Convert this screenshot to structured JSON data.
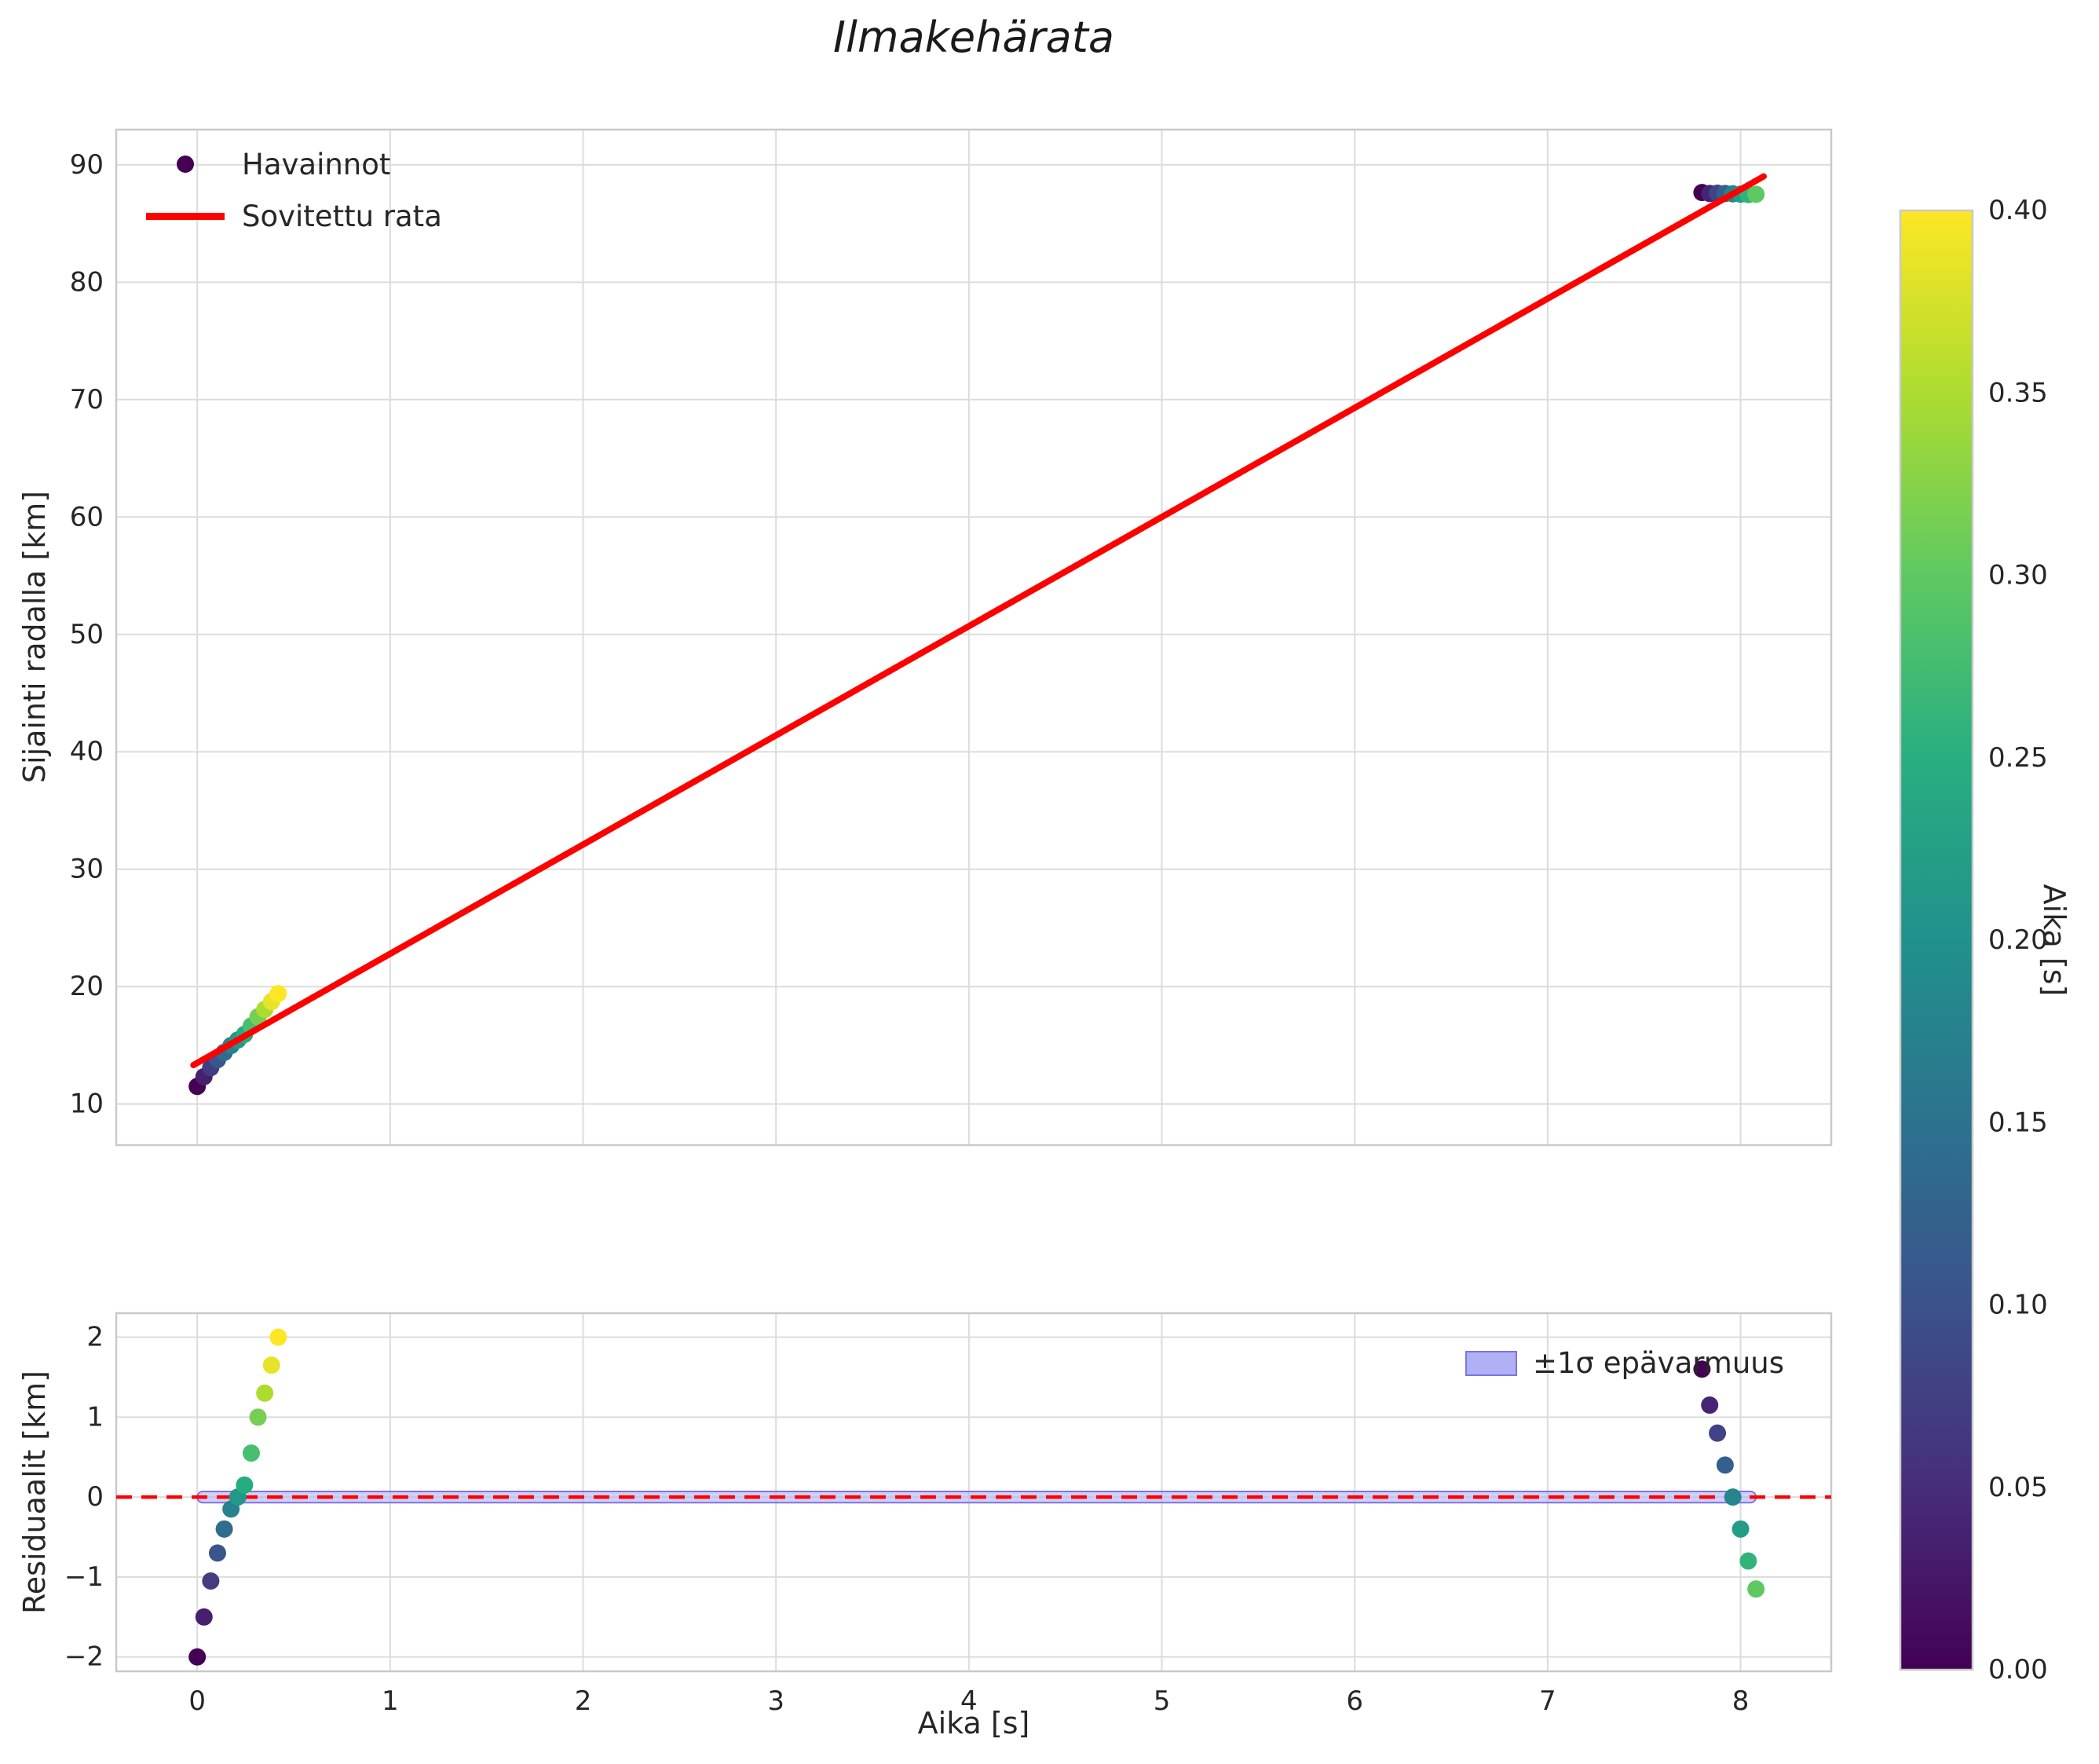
{
  "chart_data": {
    "type": "scatter",
    "title": "Ilmakehärata",
    "legend_position": "upper-left",
    "grid": true,
    "colors": {
      "fit_line": "#ff0000",
      "zero_line": "#ff0000",
      "grid": "#dcdcdc",
      "spine": "#c9c9c9",
      "text": "#262626",
      "band_fill": "#b0b0f5",
      "band_edge": "#7d74e0",
      "legend_dot": "#440154"
    },
    "legend": {
      "observations_label": "Havainnot",
      "fit_label": "Sovitettu rata",
      "band_label": "±1σ epävarmuus"
    },
    "colorbar": {
      "label": "Aika [s]",
      "min": 0.0,
      "max": 0.4,
      "ticks": [
        0.0,
        0.05,
        0.1,
        0.15,
        0.2,
        0.25,
        0.3,
        0.35,
        0.4
      ],
      "colormap": "viridis"
    },
    "fit_line": {
      "intercept": 13.5,
      "slope": 9.3,
      "x_start": -0.02,
      "x_end": 8.12
    },
    "top_plot": {
      "ylabel": "Sijainti radalla [km]",
      "ylim": [
        6.5,
        93
      ],
      "yticks": [
        10,
        20,
        30,
        40,
        50,
        60,
        70,
        80,
        90
      ],
      "xlim": [
        -0.42,
        8.47
      ],
      "xticks": [
        0,
        1,
        2,
        3,
        4,
        5,
        6,
        7,
        8
      ]
    },
    "bottom_plot": {
      "xlabel": "Aika [s]",
      "ylabel": "Residuaalit [km]",
      "ylim": [
        -2.18,
        2.3
      ],
      "yticks": [
        -2,
        -1,
        0,
        1,
        2
      ],
      "xticks": [
        0,
        1,
        2,
        3,
        4,
        5,
        6,
        7,
        8
      ],
      "band_halfwidth": 0.07,
      "band_x": [
        0.0,
        8.08
      ]
    },
    "points": [
      {
        "t": 0.0,
        "y": 11.5,
        "c": 0.0,
        "res": -2.0
      },
      {
        "t": 0.035,
        "y": 12.33,
        "c": 0.035,
        "res": -1.5
      },
      {
        "t": 0.07,
        "y": 13.1,
        "c": 0.07,
        "res": -1.05
      },
      {
        "t": 0.105,
        "y": 13.78,
        "c": 0.105,
        "res": -0.7
      },
      {
        "t": 0.14,
        "y": 14.4,
        "c": 0.14,
        "res": -0.4
      },
      {
        "t": 0.175,
        "y": 14.98,
        "c": 0.175,
        "res": -0.15
      },
      {
        "t": 0.21,
        "y": 15.45,
        "c": 0.21,
        "res": 0.0
      },
      {
        "t": 0.245,
        "y": 15.93,
        "c": 0.245,
        "res": 0.15
      },
      {
        "t": 0.28,
        "y": 16.65,
        "c": 0.28,
        "res": 0.55
      },
      {
        "t": 0.315,
        "y": 17.43,
        "c": 0.315,
        "res": 1.0
      },
      {
        "t": 0.35,
        "y": 18.06,
        "c": 0.35,
        "res": 1.3
      },
      {
        "t": 0.385,
        "y": 18.73,
        "c": 0.385,
        "res": 1.65
      },
      {
        "t": 0.42,
        "y": 19.41,
        "c": 0.4,
        "res": 2.0
      },
      {
        "t": 7.8,
        "y": 87.64,
        "c": 0.0,
        "res": 1.6
      },
      {
        "t": 7.84,
        "y": 87.56,
        "c": 0.04,
        "res": 1.15
      },
      {
        "t": 7.88,
        "y": 87.58,
        "c": 0.08,
        "res": 0.8
      },
      {
        "t": 7.92,
        "y": 87.56,
        "c": 0.12,
        "res": 0.4
      },
      {
        "t": 7.96,
        "y": 87.53,
        "c": 0.18,
        "res": 0.0
      },
      {
        "t": 8.0,
        "y": 87.5,
        "c": 0.22,
        "res": -0.4
      },
      {
        "t": 8.04,
        "y": 87.47,
        "c": 0.26,
        "res": -0.8
      },
      {
        "t": 8.08,
        "y": 87.49,
        "c": 0.3,
        "res": -1.15
      }
    ]
  }
}
